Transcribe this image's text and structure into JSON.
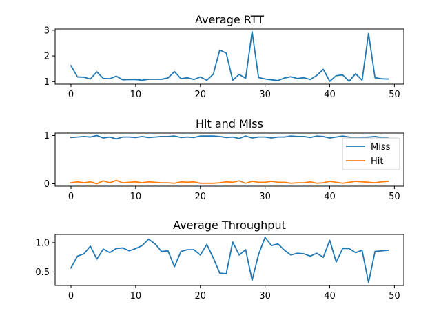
{
  "chart_data": [
    {
      "type": "line",
      "title": "Average RTT",
      "xlim": [
        -2.45,
        51.45
      ],
      "ylim": [
        0.9,
        3.05
      ],
      "xticks": [
        0,
        10,
        20,
        30,
        40,
        50
      ],
      "yticks": [
        1,
        2,
        3
      ],
      "ytick_labels": [
        "1",
        "2",
        "3"
      ],
      "legend": null,
      "series": [
        {
          "color": "#1f77b4",
          "x": [
            0,
            1,
            2,
            3,
            4,
            5,
            6,
            7,
            8,
            9,
            10,
            11,
            12,
            13,
            14,
            15,
            16,
            17,
            18,
            19,
            20,
            21,
            22,
            23,
            24,
            25,
            26,
            27,
            28,
            29,
            30,
            31,
            32,
            33,
            34,
            35,
            36,
            37,
            38,
            39,
            40,
            41,
            42,
            43,
            44,
            45,
            46,
            47,
            48,
            49
          ],
          "values": [
            1.62,
            1.18,
            1.17,
            1.1,
            1.38,
            1.12,
            1.11,
            1.21,
            1.07,
            1.08,
            1.08,
            1.05,
            1.09,
            1.09,
            1.09,
            1.14,
            1.39,
            1.11,
            1.15,
            1.08,
            1.18,
            1.05,
            1.29,
            2.23,
            2.11,
            1.05,
            1.28,
            1.13,
            2.94,
            1.16,
            1.1,
            1.07,
            1.04,
            1.14,
            1.19,
            1.12,
            1.15,
            1.08,
            1.24,
            1.48,
            1.01,
            1.23,
            1.26,
            1.01,
            1.31,
            1.05,
            2.88,
            1.15,
            1.11,
            1.1
          ]
        }
      ]
    },
    {
      "type": "line",
      "title": "Hit and Miss",
      "xlim": [
        -2.45,
        51.45
      ],
      "ylim": [
        -0.05,
        1.05
      ],
      "xticks": [
        0,
        10,
        20,
        30,
        40,
        50
      ],
      "yticks": [
        0,
        1
      ],
      "ytick_labels": [
        "0",
        "1"
      ],
      "legend": "right",
      "series": [
        {
          "name": " Miss",
          "color": "#1f77b4",
          "x": [
            0,
            1,
            2,
            3,
            4,
            5,
            6,
            7,
            8,
            9,
            10,
            11,
            12,
            13,
            14,
            15,
            16,
            17,
            18,
            19,
            20,
            21,
            22,
            23,
            24,
            25,
            26,
            27,
            28,
            29,
            30,
            31,
            32,
            33,
            34,
            35,
            36,
            37,
            38,
            39,
            40,
            41,
            42,
            43,
            44,
            45,
            46,
            47,
            48,
            49
          ],
          "values": [
            0.96,
            0.97,
            0.98,
            0.97,
            1.0,
            0.95,
            0.97,
            0.93,
            0.97,
            0.97,
            0.96,
            0.98,
            0.96,
            0.97,
            0.98,
            0.98,
            0.99,
            0.96,
            0.97,
            0.96,
            0.99,
            0.99,
            0.99,
            0.98,
            0.96,
            0.97,
            0.94,
            0.99,
            0.95,
            0.97,
            0.97,
            0.95,
            0.97,
            0.97,
            0.99,
            0.98,
            0.98,
            0.96,
            0.99,
            0.98,
            0.95,
            0.97,
            0.99,
            0.97,
            0.95,
            0.96,
            0.97,
            0.98,
            0.96,
            0.95
          ]
        },
        {
          "name": "Hit",
          "color": "#ff7f0e",
          "x": [
            0,
            1,
            2,
            3,
            4,
            5,
            6,
            7,
            8,
            9,
            10,
            11,
            12,
            13,
            14,
            15,
            16,
            17,
            18,
            19,
            20,
            21,
            22,
            23,
            24,
            25,
            26,
            27,
            28,
            29,
            30,
            31,
            32,
            33,
            34,
            35,
            36,
            37,
            38,
            39,
            40,
            41,
            42,
            43,
            44,
            45,
            46,
            47,
            48,
            49
          ],
          "values": [
            0.02,
            0.04,
            0.02,
            0.04,
            0.0,
            0.06,
            0.02,
            0.07,
            0.02,
            0.03,
            0.04,
            0.02,
            0.04,
            0.03,
            0.02,
            0.02,
            0.01,
            0.04,
            0.03,
            0.04,
            0.01,
            0.01,
            0.01,
            0.02,
            0.04,
            0.03,
            0.06,
            0.01,
            0.05,
            0.03,
            0.03,
            0.05,
            0.03,
            0.03,
            0.01,
            0.02,
            0.02,
            0.04,
            0.01,
            0.02,
            0.05,
            0.03,
            0.01,
            0.03,
            0.05,
            0.04,
            0.03,
            0.02,
            0.04,
            0.05
          ]
        }
      ]
    },
    {
      "type": "line",
      "title": "Average Throughput",
      "xlim": [
        -2.45,
        51.45
      ],
      "ylim": [
        0.27,
        1.14
      ],
      "xticks": [
        0,
        10,
        20,
        30,
        40,
        50
      ],
      "yticks": [
        0.5,
        1.0
      ],
      "ytick_labels": [
        "0.5",
        "1.0"
      ],
      "legend": null,
      "series": [
        {
          "color": "#1f77b4",
          "x": [
            0,
            1,
            2,
            3,
            4,
            5,
            6,
            7,
            8,
            9,
            10,
            11,
            12,
            13,
            14,
            15,
            16,
            17,
            18,
            19,
            20,
            21,
            22,
            23,
            24,
            25,
            26,
            27,
            28,
            29,
            30,
            31,
            32,
            33,
            34,
            35,
            36,
            37,
            38,
            39,
            40,
            41,
            42,
            43,
            44,
            45,
            46,
            47,
            48,
            49
          ],
          "values": [
            0.57,
            0.77,
            0.81,
            0.94,
            0.72,
            0.89,
            0.83,
            0.9,
            0.91,
            0.86,
            0.9,
            0.95,
            1.06,
            0.98,
            0.85,
            0.86,
            0.59,
            0.85,
            0.88,
            0.88,
            0.79,
            0.97,
            0.74,
            0.48,
            0.47,
            1.01,
            0.79,
            0.88,
            0.36,
            0.8,
            1.09,
            0.95,
            0.98,
            0.87,
            0.79,
            0.82,
            0.81,
            0.77,
            0.82,
            0.75,
            1.04,
            0.67,
            0.9,
            0.9,
            0.83,
            0.87,
            0.32,
            0.85,
            0.86,
            0.87
          ]
        }
      ]
    }
  ]
}
